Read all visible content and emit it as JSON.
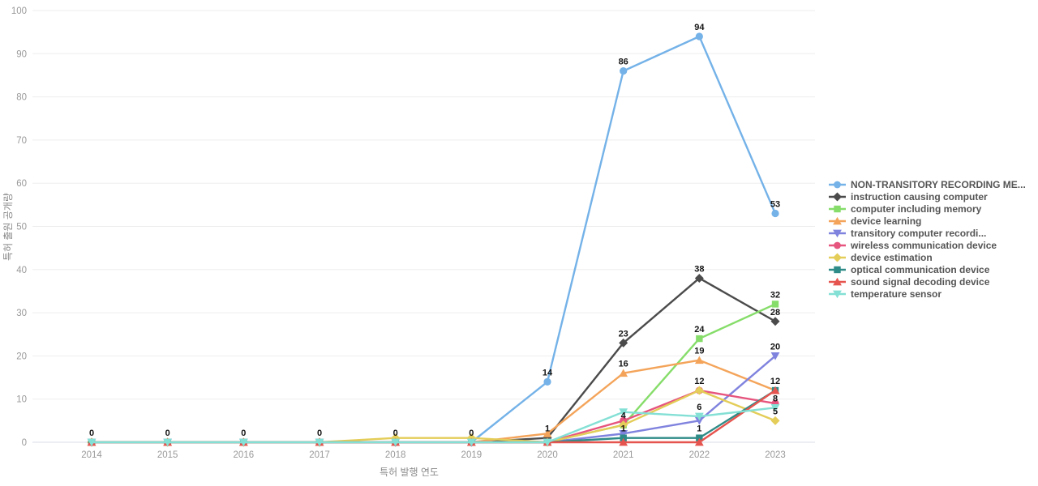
{
  "chart_data": {
    "type": "line",
    "x": [
      2014,
      2015,
      2016,
      2017,
      2018,
      2019,
      2020,
      2021,
      2022,
      2023
    ],
    "xlabel": "특허 발행 연도",
    "ylabel": "특허 출원 공개량",
    "ylim": [
      0,
      100
    ],
    "ytick_step": 10,
    "grid": "horizontal",
    "legend_position": "right",
    "series": [
      {
        "name": "NON-TRANSITORY RECORDING ME...",
        "slug": "non-transitory-recording-me",
        "color": "#74b2e8",
        "marker": "circle",
        "values": [
          0,
          0,
          0,
          0,
          0,
          0,
          14,
          86,
          94,
          53
        ],
        "labels": [
          0,
          0,
          0,
          0,
          0,
          0,
          14,
          86,
          94,
          53
        ]
      },
      {
        "name": "instruction causing computer",
        "slug": "instruction-causing-computer",
        "color": "#4b4b4b",
        "marker": "diamond",
        "values": [
          0,
          0,
          0,
          0,
          0,
          0,
          1,
          23,
          38,
          28
        ],
        "labels": [
          null,
          null,
          null,
          null,
          null,
          null,
          1,
          23,
          38,
          28
        ]
      },
      {
        "name": "computer including memory",
        "slug": "computer-including-memory",
        "color": "#86dd6a",
        "marker": "square",
        "values": [
          0,
          0,
          0,
          0,
          0,
          0,
          0,
          4,
          24,
          32
        ],
        "labels": [
          null,
          null,
          null,
          null,
          null,
          null,
          null,
          4,
          24,
          32
        ]
      },
      {
        "name": "device learning",
        "slug": "device-learning",
        "color": "#f4a45a",
        "marker": "triangle-up",
        "values": [
          0,
          0,
          0,
          0,
          0,
          0,
          2,
          16,
          19,
          12
        ],
        "labels": [
          null,
          null,
          null,
          null,
          null,
          null,
          null,
          16,
          19,
          null
        ]
      },
      {
        "name": "transitory computer recordi...",
        "slug": "transitory-computer-recordi",
        "color": "#8083de",
        "marker": "triangle-down",
        "values": [
          0,
          0,
          0,
          0,
          0,
          0,
          0,
          2,
          5,
          20
        ],
        "labels": [
          null,
          null,
          null,
          null,
          null,
          null,
          null,
          null,
          null,
          20
        ]
      },
      {
        "name": "wireless communication device",
        "slug": "wireless-communication-device",
        "color": "#e6557e",
        "marker": "circle",
        "values": [
          0,
          0,
          0,
          0,
          0,
          0,
          0,
          5,
          12,
          9
        ],
        "labels": [
          null,
          null,
          null,
          null,
          null,
          null,
          null,
          null,
          12,
          null
        ]
      },
      {
        "name": "device estimation",
        "slug": "device-estimation",
        "color": "#e4cd58",
        "marker": "diamond",
        "values": [
          0,
          0,
          0,
          0,
          1,
          1,
          0,
          4,
          12,
          5
        ],
        "labels": [
          null,
          null,
          null,
          null,
          null,
          null,
          null,
          null,
          null,
          5
        ]
      },
      {
        "name": "optical communication device",
        "slug": "optical-communication-device",
        "color": "#2e8b87",
        "marker": "square",
        "values": [
          0,
          0,
          0,
          0,
          0,
          0,
          0,
          1,
          1,
          12
        ],
        "labels": [
          null,
          null,
          null,
          null,
          null,
          null,
          null,
          1,
          1,
          12
        ]
      },
      {
        "name": "sound signal decoding device",
        "slug": "sound-signal-decoding-device",
        "color": "#e6544f",
        "marker": "triangle-up",
        "values": [
          0,
          0,
          0,
          0,
          0,
          0,
          0,
          0,
          0,
          12
        ],
        "labels": [
          null,
          null,
          null,
          null,
          null,
          null,
          null,
          null,
          null,
          null
        ]
      },
      {
        "name": "temperature sensor",
        "slug": "temperature-sensor",
        "color": "#84e0d5",
        "marker": "triangle-down",
        "values": [
          0,
          0,
          0,
          0,
          0,
          0,
          0,
          7,
          6,
          8
        ],
        "labels": [
          null,
          null,
          null,
          null,
          null,
          null,
          null,
          null,
          6,
          8
        ]
      }
    ],
    "colors": {
      "grid_line": "#ededed",
      "zero_line": "#d8dde8",
      "tick_text": "#999999",
      "axis_title_text": "#8a8a8a",
      "value_label_text": "#151515",
      "background": "#ffffff"
    }
  }
}
